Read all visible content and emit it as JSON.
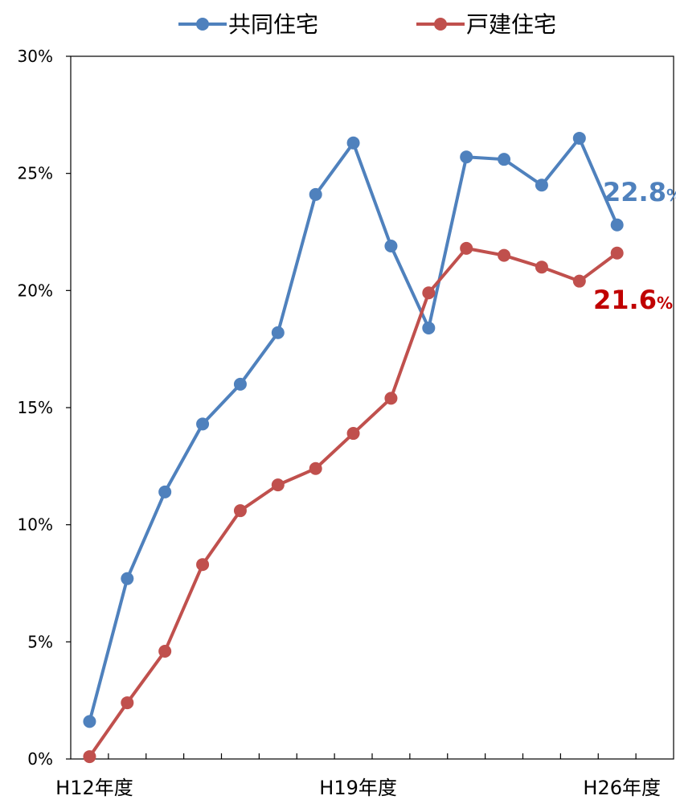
{
  "chart_data": {
    "type": "line",
    "x": [
      "H12",
      "H13",
      "H14",
      "H15",
      "H16",
      "H17",
      "H18",
      "H19",
      "H20",
      "H21",
      "H22",
      "H23",
      "H24",
      "H25",
      "H26"
    ],
    "x_tick_labels": [
      {
        "index": 0,
        "label": "H12年度"
      },
      {
        "index": 7,
        "label": "H19年度"
      },
      {
        "index": 14,
        "label": "H26年度"
      }
    ],
    "series": [
      {
        "name": "共同住宅",
        "color": "#4F81BD",
        "values": [
          1.6,
          7.7,
          11.4,
          14.3,
          16.0,
          18.2,
          24.1,
          26.3,
          21.9,
          18.4,
          25.7,
          25.6,
          24.5,
          26.5,
          22.8
        ],
        "end_label": "22.8",
        "end_label_unit": "%"
      },
      {
        "name": "戸建住宅",
        "color": "#C0504D",
        "values": [
          0.1,
          2.4,
          4.6,
          8.3,
          10.6,
          11.7,
          12.4,
          13.9,
          15.4,
          19.9,
          21.8,
          21.5,
          21.0,
          20.4,
          21.6
        ],
        "end_label": "21.6",
        "end_label_unit": "%",
        "end_label_color": "#C00000"
      }
    ],
    "ylim": [
      0,
      30
    ],
    "y_ticks": [
      0,
      5,
      10,
      15,
      20,
      25,
      30
    ],
    "y_tick_suffix": "%",
    "legend_position": "top-center",
    "grid": false,
    "title": "",
    "xlabel": "",
    "ylabel": ""
  }
}
